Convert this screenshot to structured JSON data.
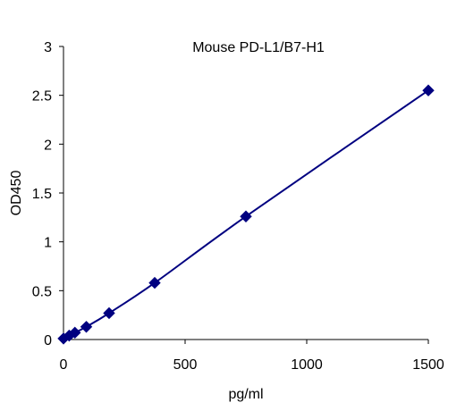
{
  "chart_data": {
    "type": "line",
    "title": "Mouse PD-L1/B7-H1",
    "xlabel": "pg/ml",
    "ylabel": "OD450",
    "xlim": [
      0,
      1500
    ],
    "ylim": [
      0,
      3
    ],
    "x_ticks": [
      0,
      500,
      1000,
      1500
    ],
    "y_ticks": [
      0,
      0.5,
      1,
      1.5,
      2,
      2.5,
      3
    ],
    "x_tick_labels": [
      "0",
      "500",
      "1000",
      "1500"
    ],
    "y_tick_labels": [
      "0",
      "0.5",
      "1",
      "1.5",
      "2",
      "2.5",
      "3"
    ],
    "grid": false,
    "legend": "none",
    "series": [
      {
        "x": [
          0,
          23.4,
          46.9,
          93.8,
          187.5,
          375,
          750,
          1500
        ],
        "y": [
          0.01,
          0.04,
          0.07,
          0.13,
          0.27,
          0.58,
          1.26,
          2.55
        ],
        "color": "#000080",
        "marker": "diamond"
      }
    ]
  }
}
